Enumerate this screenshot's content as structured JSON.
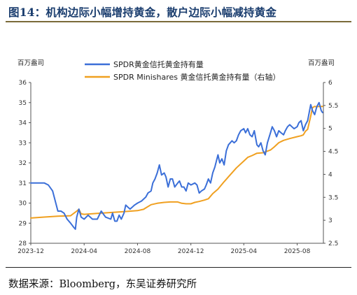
{
  "figure": {
    "title": "图14：机构边际小幅增持黄金，散户边际小幅减持黄金",
    "source": "数据来源：Bloomberg，东吴证券研究所"
  },
  "chart_data": {
    "type": "line",
    "left_axis": {
      "unit": "百万盎司",
      "ylim": [
        28,
        36
      ],
      "ticks": [
        28,
        29,
        30,
        31,
        32,
        33,
        34,
        35,
        36
      ]
    },
    "right_axis": {
      "unit": "百万盎司",
      "ylim": [
        2.5,
        6
      ],
      "ticks": [
        "2.5",
        "3",
        "3.5",
        "4",
        "4.5",
        "5",
        "5.5",
        "6"
      ]
    },
    "x_axis": {
      "ticks": [
        "2023-12",
        "2024-04",
        "2024-08",
        "2024-12",
        "2025-04",
        "2025-08"
      ]
    },
    "grid": false,
    "legend_position": "top",
    "series": [
      {
        "name": "SPDR黄金信托黄金持有量",
        "axis": "left",
        "color": "#3b6fd8",
        "points": [
          [
            "2023-12-01",
            31.0
          ],
          [
            "2023-12-15",
            31.0
          ],
          [
            "2024-01-01",
            31.0
          ],
          [
            "2024-01-10",
            30.9
          ],
          [
            "2024-01-20",
            30.6
          ],
          [
            "2024-02-01",
            29.6
          ],
          [
            "2024-02-08",
            29.6
          ],
          [
            "2024-02-15",
            29.5
          ],
          [
            "2024-02-22",
            29.2
          ],
          [
            "2024-03-01",
            29.0
          ],
          [
            "2024-03-08",
            28.8
          ],
          [
            "2024-03-12",
            28.7
          ],
          [
            "2024-03-15",
            29.3
          ],
          [
            "2024-03-20",
            29.7
          ],
          [
            "2024-03-25",
            29.3
          ],
          [
            "2024-04-01",
            29.2
          ],
          [
            "2024-04-10",
            29.4
          ],
          [
            "2024-04-20",
            29.2
          ],
          [
            "2024-05-01",
            29.2
          ],
          [
            "2024-05-10",
            29.6
          ],
          [
            "2024-05-20",
            29.3
          ],
          [
            "2024-06-01",
            29.2
          ],
          [
            "2024-06-05",
            29.5
          ],
          [
            "2024-06-10",
            29.1
          ],
          [
            "2024-06-15",
            29.1
          ],
          [
            "2024-06-20",
            29.4
          ],
          [
            "2024-06-25",
            29.2
          ],
          [
            "2024-07-01",
            29.5
          ],
          [
            "2024-07-05",
            29.9
          ],
          [
            "2024-07-10",
            29.8
          ],
          [
            "2024-07-15",
            29.7
          ],
          [
            "2024-07-20",
            29.8
          ],
          [
            "2024-07-25",
            29.9
          ],
          [
            "2024-08-01",
            30.0
          ],
          [
            "2024-08-10",
            30.1
          ],
          [
            "2024-08-20",
            30.3
          ],
          [
            "2024-08-25",
            30.5
          ],
          [
            "2024-09-01",
            30.6
          ],
          [
            "2024-09-05",
            31.0
          ],
          [
            "2024-09-10",
            31.2
          ],
          [
            "2024-09-15",
            31.5
          ],
          [
            "2024-09-20",
            31.9
          ],
          [
            "2024-09-25",
            31.4
          ],
          [
            "2024-10-01",
            31.5
          ],
          [
            "2024-10-05",
            31.3
          ],
          [
            "2024-10-10",
            30.8
          ],
          [
            "2024-10-15",
            31.2
          ],
          [
            "2024-10-20",
            31.2
          ],
          [
            "2024-10-25",
            30.8
          ],
          [
            "2024-11-01",
            31.0
          ],
          [
            "2024-11-05",
            31.1
          ],
          [
            "2024-11-10",
            30.8
          ],
          [
            "2024-11-15",
            30.8
          ],
          [
            "2024-11-20",
            30.6
          ],
          [
            "2024-11-25",
            31.0
          ],
          [
            "2024-12-01",
            30.9
          ],
          [
            "2024-12-10",
            31.0
          ],
          [
            "2024-12-15",
            30.9
          ],
          [
            "2024-12-20",
            30.5
          ],
          [
            "2024-12-25",
            30.6
          ],
          [
            "2025-01-01",
            30.7
          ],
          [
            "2025-01-05",
            30.9
          ],
          [
            "2025-01-10",
            31.2
          ],
          [
            "2025-01-15",
            31.0
          ],
          [
            "2025-01-20",
            31.5
          ],
          [
            "2025-01-25",
            31.8
          ],
          [
            "2025-02-01",
            32.4
          ],
          [
            "2025-02-05",
            32.0
          ],
          [
            "2025-02-10",
            32.2
          ],
          [
            "2025-02-15",
            31.9
          ],
          [
            "2025-02-20",
            32.6
          ],
          [
            "2025-02-25",
            32.9
          ],
          [
            "2025-03-01",
            33.0
          ],
          [
            "2025-03-05",
            33.1
          ],
          [
            "2025-03-10",
            33.0
          ],
          [
            "2025-03-15",
            33.1
          ],
          [
            "2025-03-20",
            33.4
          ],
          [
            "2025-03-25",
            33.6
          ],
          [
            "2025-04-01",
            33.7
          ],
          [
            "2025-04-05",
            33.5
          ],
          [
            "2025-04-10",
            33.7
          ],
          [
            "2025-04-15",
            33.4
          ],
          [
            "2025-04-20",
            33.3
          ],
          [
            "2025-04-25",
            33.6
          ],
          [
            "2025-05-01",
            32.9
          ],
          [
            "2025-05-05",
            32.8
          ],
          [
            "2025-05-10",
            33.0
          ],
          [
            "2025-05-15",
            32.6
          ],
          [
            "2025-05-20",
            32.4
          ],
          [
            "2025-05-25",
            33.0
          ],
          [
            "2025-06-01",
            33.5
          ],
          [
            "2025-06-05",
            33.8
          ],
          [
            "2025-06-10",
            33.6
          ],
          [
            "2025-06-15",
            33.3
          ],
          [
            "2025-06-20",
            33.6
          ],
          [
            "2025-06-25",
            33.5
          ],
          [
            "2025-07-01",
            33.4
          ],
          [
            "2025-07-05",
            33.6
          ],
          [
            "2025-07-10",
            33.8
          ],
          [
            "2025-07-15",
            33.9
          ],
          [
            "2025-07-20",
            33.8
          ],
          [
            "2025-07-25",
            33.7
          ],
          [
            "2025-08-01",
            33.8
          ],
          [
            "2025-08-05",
            34.0
          ],
          [
            "2025-08-10",
            34.1
          ],
          [
            "2025-08-15",
            33.6
          ],
          [
            "2025-08-20",
            33.9
          ],
          [
            "2025-08-25",
            34.1
          ],
          [
            "2025-09-01",
            34.9
          ],
          [
            "2025-09-05",
            34.6
          ],
          [
            "2025-09-10",
            34.4
          ],
          [
            "2025-09-15",
            34.8
          ],
          [
            "2025-09-20",
            35.0
          ],
          [
            "2025-09-25",
            34.6
          ],
          [
            "2025-09-28",
            34.5
          ]
        ]
      },
      {
        "name": "SPDR Minishares 黄金信托黄金持有量（右轴）",
        "axis": "right",
        "color": "#f0a020",
        "points": [
          [
            "2023-12-01",
            3.05
          ],
          [
            "2024-01-01",
            3.07
          ],
          [
            "2024-02-01",
            3.09
          ],
          [
            "2024-03-01",
            3.1
          ],
          [
            "2024-03-15",
            3.2
          ],
          [
            "2024-03-20",
            3.24
          ],
          [
            "2024-03-25",
            3.14
          ],
          [
            "2024-04-01",
            3.13
          ],
          [
            "2024-05-01",
            3.15
          ],
          [
            "2024-06-01",
            3.17
          ],
          [
            "2024-07-01",
            3.19
          ],
          [
            "2024-08-01",
            3.21
          ],
          [
            "2024-08-15",
            3.24
          ],
          [
            "2024-08-20",
            3.27
          ],
          [
            "2024-09-01",
            3.34
          ],
          [
            "2024-09-15",
            3.37
          ],
          [
            "2024-10-01",
            3.39
          ],
          [
            "2024-10-15",
            3.4
          ],
          [
            "2024-11-01",
            3.4
          ],
          [
            "2024-11-10",
            3.37
          ],
          [
            "2024-11-20",
            3.36
          ],
          [
            "2024-12-01",
            3.36
          ],
          [
            "2024-12-10",
            3.39
          ],
          [
            "2024-12-20",
            3.41
          ],
          [
            "2025-01-01",
            3.44
          ],
          [
            "2025-01-10",
            3.47
          ],
          [
            "2025-01-20",
            3.58
          ],
          [
            "2025-02-01",
            3.68
          ],
          [
            "2025-02-15",
            3.84
          ],
          [
            "2025-03-01",
            3.99
          ],
          [
            "2025-03-15",
            4.14
          ],
          [
            "2025-04-01",
            4.29
          ],
          [
            "2025-04-10",
            4.37
          ],
          [
            "2025-04-20",
            4.41
          ],
          [
            "2025-05-01",
            4.46
          ],
          [
            "2025-05-15",
            4.47
          ],
          [
            "2025-06-01",
            4.53
          ],
          [
            "2025-06-10",
            4.6
          ],
          [
            "2025-06-20",
            4.69
          ],
          [
            "2025-07-01",
            4.74
          ],
          [
            "2025-07-15",
            4.78
          ],
          [
            "2025-08-01",
            4.82
          ],
          [
            "2025-08-10",
            4.84
          ],
          [
            "2025-08-15",
            4.86
          ],
          [
            "2025-08-20",
            4.94
          ],
          [
            "2025-08-25",
            4.98
          ],
          [
            "2025-09-01",
            5.27
          ],
          [
            "2025-09-05",
            5.45
          ],
          [
            "2025-09-10",
            5.48
          ],
          [
            "2025-09-15",
            5.47
          ],
          [
            "2025-09-20",
            5.48
          ],
          [
            "2025-09-28",
            5.48
          ]
        ]
      }
    ]
  }
}
